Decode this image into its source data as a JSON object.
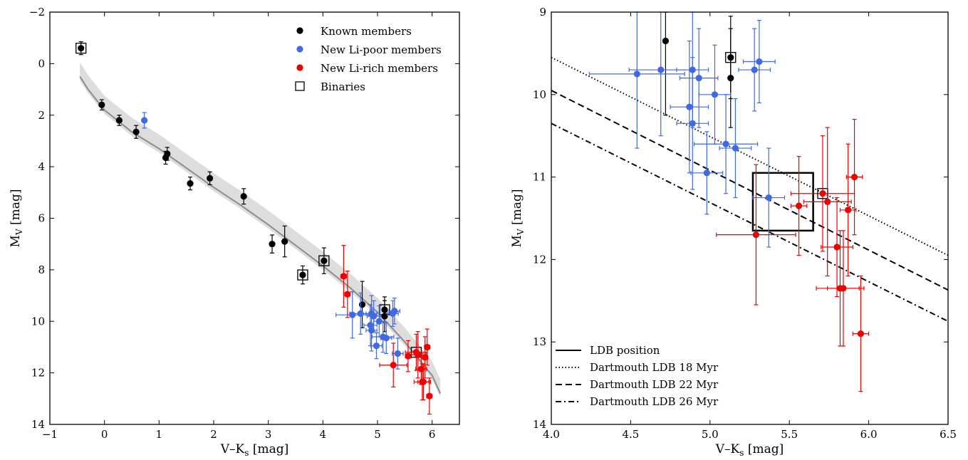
{
  "chart_data": [
    {
      "type": "scatter",
      "xlabel": "V–Ks [mag]",
      "ylabel": "MV [mag]",
      "xlim": [
        -1,
        6.5
      ],
      "ylim": [
        14,
        -2
      ],
      "y_inverted": true,
      "xticks": [
        -1,
        0,
        1,
        2,
        3,
        4,
        5,
        6
      ],
      "yticks": [
        -2,
        0,
        2,
        4,
        6,
        8,
        10,
        12,
        14
      ],
      "xtick_labels": [
        "−1",
        "0",
        "1",
        "2",
        "3",
        "4",
        "5",
        "6"
      ],
      "ytick_labels": [
        "−2",
        "0",
        "2",
        "4",
        "6",
        "8",
        "10",
        "12",
        "14"
      ],
      "grid": false,
      "legend_position": "top-right",
      "legend": [
        {
          "label": "Known members",
          "marker": "circle",
          "color": "#000000"
        },
        {
          "label": "New Li-poor members",
          "marker": "circle",
          "color": "#4169e1"
        },
        {
          "label": "New Li-rich members",
          "marker": "circle",
          "color": "#ee0000"
        },
        {
          "label": "Binaries",
          "marker": "open-square",
          "color": "#000000"
        }
      ],
      "series": [
        {
          "name": "Known members",
          "color": "#000000",
          "points": [
            {
              "x": -0.43,
              "y": -0.6,
              "yerr": 0.25,
              "binary": true
            },
            {
              "x": -0.05,
              "y": 1.6,
              "yerr": 0.2
            },
            {
              "x": 0.27,
              "y": 2.2,
              "yerr": 0.2
            },
            {
              "x": 0.58,
              "y": 2.65,
              "yerr": 0.25
            },
            {
              "x": 1.12,
              "y": 3.65,
              "yerr": 0.25
            },
            {
              "x": 1.15,
              "y": 3.5,
              "yerr": 0.25
            },
            {
              "x": 1.57,
              "y": 4.65,
              "yerr": 0.25
            },
            {
              "x": 1.93,
              "y": 4.45,
              "yerr": 0.25
            },
            {
              "x": 2.55,
              "y": 5.15,
              "yerr": 0.3
            },
            {
              "x": 3.07,
              "y": 7.0,
              "yerr": 0.35
            },
            {
              "x": 3.3,
              "y": 6.9,
              "yerr": 0.6
            },
            {
              "x": 3.63,
              "y": 8.2,
              "yerr": 0.35,
              "binary": true
            },
            {
              "x": 4.02,
              "y": 7.65,
              "yerr": 0.5,
              "binary": true
            },
            {
              "x": 4.72,
              "y": 9.35,
              "yerr": 0.9
            },
            {
              "x": 5.13,
              "y": 9.8,
              "yerr": 0.6
            },
            {
              "x": 5.13,
              "y": 9.55,
              "yerr": 0.5,
              "binary": true
            }
          ]
        },
        {
          "name": "New Li-poor members",
          "color": "#4169e1",
          "points": [
            {
              "x": 0.73,
              "y": 2.2,
              "yerr": 0.3
            },
            {
              "x": 4.54,
              "y": 9.75,
              "xerr": 0.3,
              "yerr": 0.9
            },
            {
              "x": 4.69,
              "y": 9.7,
              "xerr": 0.2,
              "yerr": 0.8
            },
            {
              "x": 4.87,
              "y": 10.15,
              "xerr": 0.12,
              "yerr": 0.8
            },
            {
              "x": 4.89,
              "y": 9.7,
              "xerr": 0.1,
              "yerr": 0.7
            },
            {
              "x": 4.89,
              "y": 10.35,
              "xerr": 0.1,
              "yerr": 0.8
            },
            {
              "x": 4.93,
              "y": 9.8,
              "xerr": 0.12,
              "yerr": 0.6
            },
            {
              "x": 4.98,
              "y": 10.95,
              "xerr": 0.1,
              "yerr": 0.5
            },
            {
              "x": 5.03,
              "y": 10.0,
              "xerr": 0.1,
              "yerr": 0.6
            },
            {
              "x": 5.1,
              "y": 10.6,
              "xerr": 0.2,
              "yerr": 0.6
            },
            {
              "x": 5.16,
              "y": 10.65,
              "xerr": 0.1,
              "yerr": 0.6
            },
            {
              "x": 5.28,
              "y": 9.7,
              "xerr": 0.1,
              "yerr": 0.5
            },
            {
              "x": 5.31,
              "y": 9.6,
              "xerr": 0.1,
              "yerr": 0.5
            },
            {
              "x": 5.37,
              "y": 11.25,
              "xerr": 0.1,
              "yerr": 0.6
            }
          ]
        },
        {
          "name": "New Li-rich members",
          "color": "#ee0000",
          "points": [
            {
              "x": 4.38,
              "y": 8.25,
              "xerr": 0.05,
              "yerr": 1.2
            },
            {
              "x": 4.45,
              "y": 8.95,
              "xerr": 0.05,
              "yerr": 0.9
            },
            {
              "x": 5.29,
              "y": 11.7,
              "xerr": 0.25,
              "yerr": 0.85
            },
            {
              "x": 5.56,
              "y": 11.35,
              "xerr": 0.05,
              "yerr": 0.6
            },
            {
              "x": 5.71,
              "y": 11.2,
              "xerr": 0.2,
              "yerr": 0.7,
              "binary": true
            },
            {
              "x": 5.74,
              "y": 11.3,
              "xerr": 0.15,
              "yerr": 0.9
            },
            {
              "x": 5.8,
              "y": 11.85,
              "xerr": 0.1,
              "yerr": 0.6
            },
            {
              "x": 5.82,
              "y": 12.35,
              "xerr": 0.15,
              "yerr": 0.7
            },
            {
              "x": 5.84,
              "y": 12.35,
              "xerr": 0.1,
              "yerr": 0.7
            },
            {
              "x": 5.87,
              "y": 11.4,
              "xerr": 0.05,
              "yerr": 0.8
            },
            {
              "x": 5.91,
              "y": 11.0,
              "xerr": 0.05,
              "yerr": 0.7
            },
            {
              "x": 5.95,
              "y": 12.9,
              "xerr": 0.05,
              "yerr": 0.7
            }
          ]
        }
      ],
      "isochrone_band": [
        [
          -0.45,
          0.3
        ],
        [
          -0.3,
          0.8
        ],
        [
          0,
          1.6
        ],
        [
          0.5,
          2.45
        ],
        [
          1,
          3.1
        ],
        [
          1.5,
          3.85
        ],
        [
          2,
          4.6
        ],
        [
          2.5,
          5.3
        ],
        [
          3,
          6.05
        ],
        [
          3.5,
          6.85
        ],
        [
          4,
          7.65
        ],
        [
          4.5,
          8.5
        ],
        [
          5,
          9.45
        ],
        [
          5.5,
          10.6
        ],
        [
          6,
          11.9
        ],
        [
          6.15,
          12.6
        ]
      ]
    },
    {
      "type": "scatter",
      "xlabel": "V–Ks [mag]",
      "ylabel": "MV [mag]",
      "xlim": [
        4.0,
        6.5
      ],
      "ylim": [
        14,
        9
      ],
      "y_inverted": true,
      "xticks": [
        4.0,
        4.5,
        5.0,
        5.5,
        6.0,
        6.5
      ],
      "yticks": [
        9,
        10,
        11,
        12,
        13,
        14
      ],
      "xtick_labels": [
        "4.0",
        "4.5",
        "5.0",
        "5.5",
        "6.0",
        "6.5"
      ],
      "ytick_labels": [
        "9",
        "10",
        "11",
        "12",
        "13",
        "14"
      ],
      "grid": false,
      "legend_position": "bottom-left",
      "legend": [
        {
          "label": "LDB position",
          "line": "solid"
        },
        {
          "label": "Dartmouth LDB 18 Myr",
          "line": "dotted"
        },
        {
          "label": "Dartmouth LDB 22 Myr",
          "line": "dashed"
        },
        {
          "label": "Dartmouth LDB 26 Myr",
          "line": "dashdot"
        }
      ],
      "ldb_box": {
        "x": [
          5.27,
          5.65
        ],
        "y": [
          10.95,
          11.65
        ]
      },
      "lines": [
        {
          "name": "Dartmouth LDB 18 Myr",
          "style": "dotted",
          "x": [
            4.0,
            6.5
          ],
          "y": [
            9.55,
            11.95
          ]
        },
        {
          "name": "Dartmouth LDB 22 Myr",
          "style": "dashed",
          "x": [
            4.0,
            6.5
          ],
          "y": [
            9.95,
            12.37
          ]
        },
        {
          "name": "Dartmouth LDB 26 Myr",
          "style": "dashdot",
          "x": [
            4.0,
            6.5
          ],
          "y": [
            10.35,
            12.75
          ]
        }
      ]
    }
  ]
}
